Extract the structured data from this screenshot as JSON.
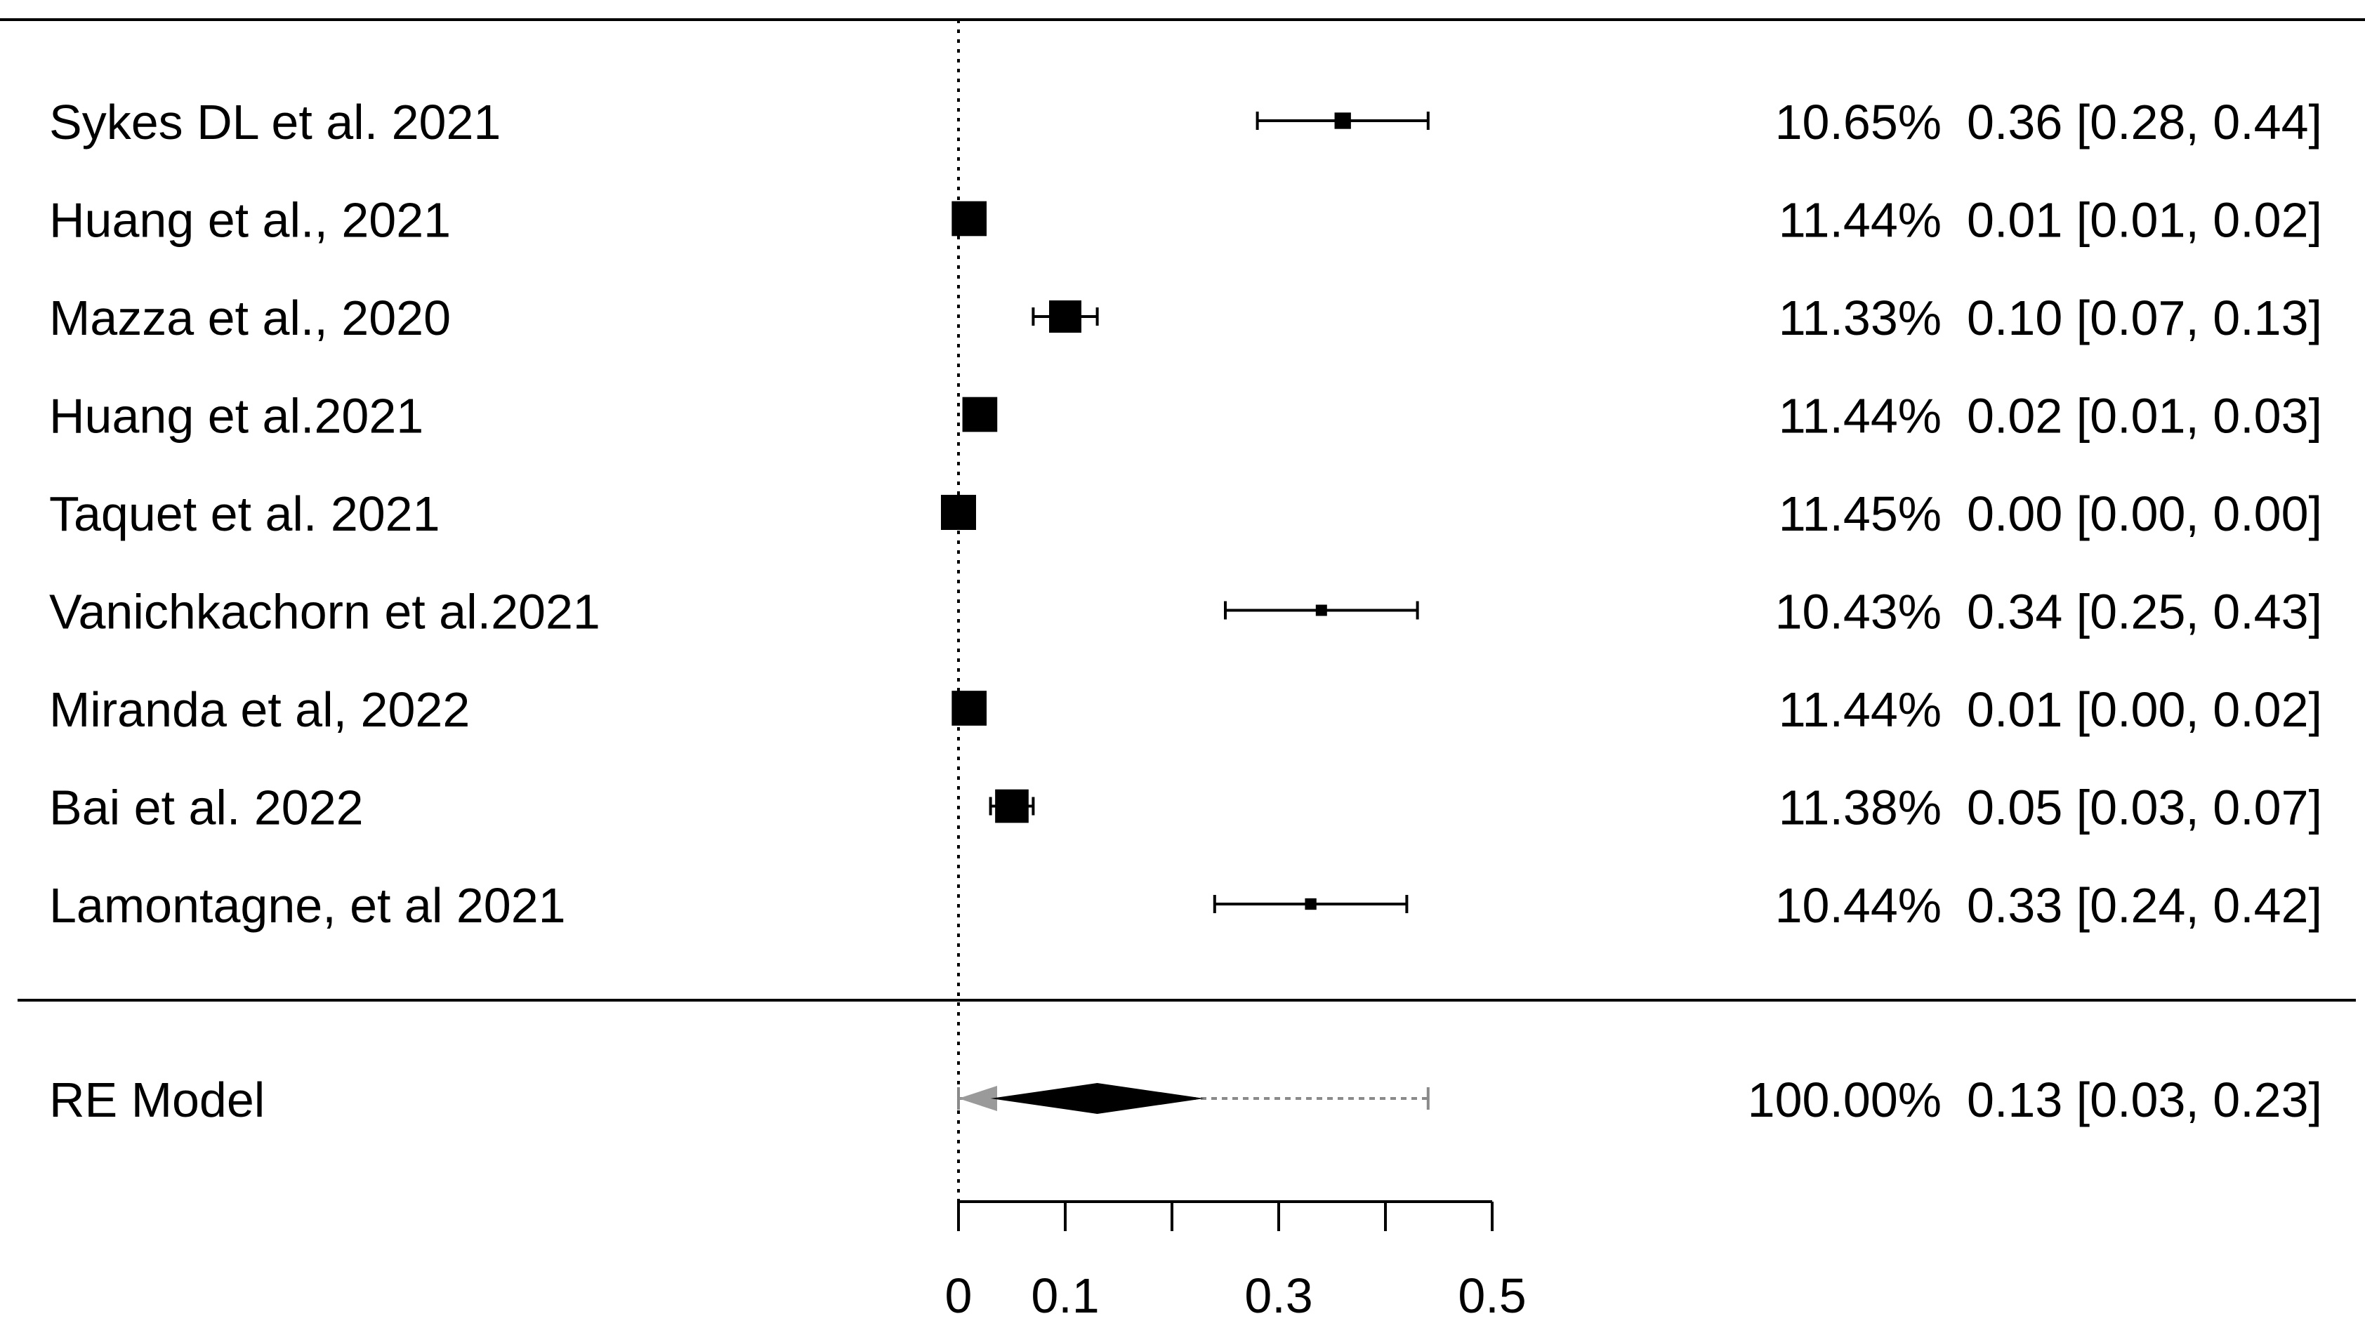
{
  "chart_data": {
    "type": "forest",
    "xlim": [
      0,
      0.5
    ],
    "reference_line": 0,
    "studies": [
      {
        "label": "Sykes DL et al. 2021",
        "estimate": 0.36,
        "ci_low": 0.28,
        "ci_high": 0.44,
        "weight": "10.65%",
        "text": "0.36 [0.28, 0.44]",
        "w": 10.65
      },
      {
        "label": "Huang et al., 2021",
        "estimate": 0.01,
        "ci_low": 0.01,
        "ci_high": 0.02,
        "weight": "11.44%",
        "text": "0.01 [0.01, 0.02]",
        "w": 11.44
      },
      {
        "label": "Mazza et al., 2020",
        "estimate": 0.1,
        "ci_low": 0.07,
        "ci_high": 0.13,
        "weight": "11.33%",
        "text": "0.10 [0.07, 0.13]",
        "w": 11.33
      },
      {
        "label": "Huang et al.2021",
        "estimate": 0.02,
        "ci_low": 0.01,
        "ci_high": 0.03,
        "weight": "11.44%",
        "text": "0.02 [0.01, 0.03]",
        "w": 11.44
      },
      {
        "label": "Taquet et al. 2021",
        "estimate": 0.0,
        "ci_low": 0.0,
        "ci_high": 0.0,
        "weight": "11.45%",
        "text": "0.00 [0.00, 0.00]",
        "w": 11.45
      },
      {
        "label": "Vanichkachorn et al.2021",
        "estimate": 0.34,
        "ci_low": 0.25,
        "ci_high": 0.43,
        "weight": "10.43%",
        "text": "0.34 [0.25, 0.43]",
        "w": 10.43
      },
      {
        "label": "Miranda et al, 2022",
        "estimate": 0.01,
        "ci_low": 0.0,
        "ci_high": 0.02,
        "weight": "11.44%",
        "text": "0.01 [0.00, 0.02]",
        "w": 11.44
      },
      {
        "label": "Bai et al. 2022",
        "estimate": 0.05,
        "ci_low": 0.03,
        "ci_high": 0.07,
        "weight": "11.38%",
        "text": "0.05 [0.03, 0.07]",
        "w": 11.38
      },
      {
        "label": "Lamontagne, et al 2021",
        "estimate": 0.33,
        "ci_low": 0.24,
        "ci_high": 0.42,
        "weight": "10.44%",
        "text": "0.33 [0.24, 0.42]",
        "w": 10.44
      }
    ],
    "summary": {
      "label": "RE Model",
      "estimate": 0.13,
      "ci_low": 0.03,
      "ci_high": 0.23,
      "pi_low": 0.0,
      "pi_high": 0.44,
      "weight": "100.00%",
      "text": "0.13 [0.03, 0.23]"
    },
    "x_ticks": [
      0,
      0.1,
      0.2,
      0.3,
      0.4,
      0.5
    ],
    "x_tick_labels": [
      "0",
      "0.1",
      "",
      "0.3",
      "",
      "0.5"
    ]
  }
}
